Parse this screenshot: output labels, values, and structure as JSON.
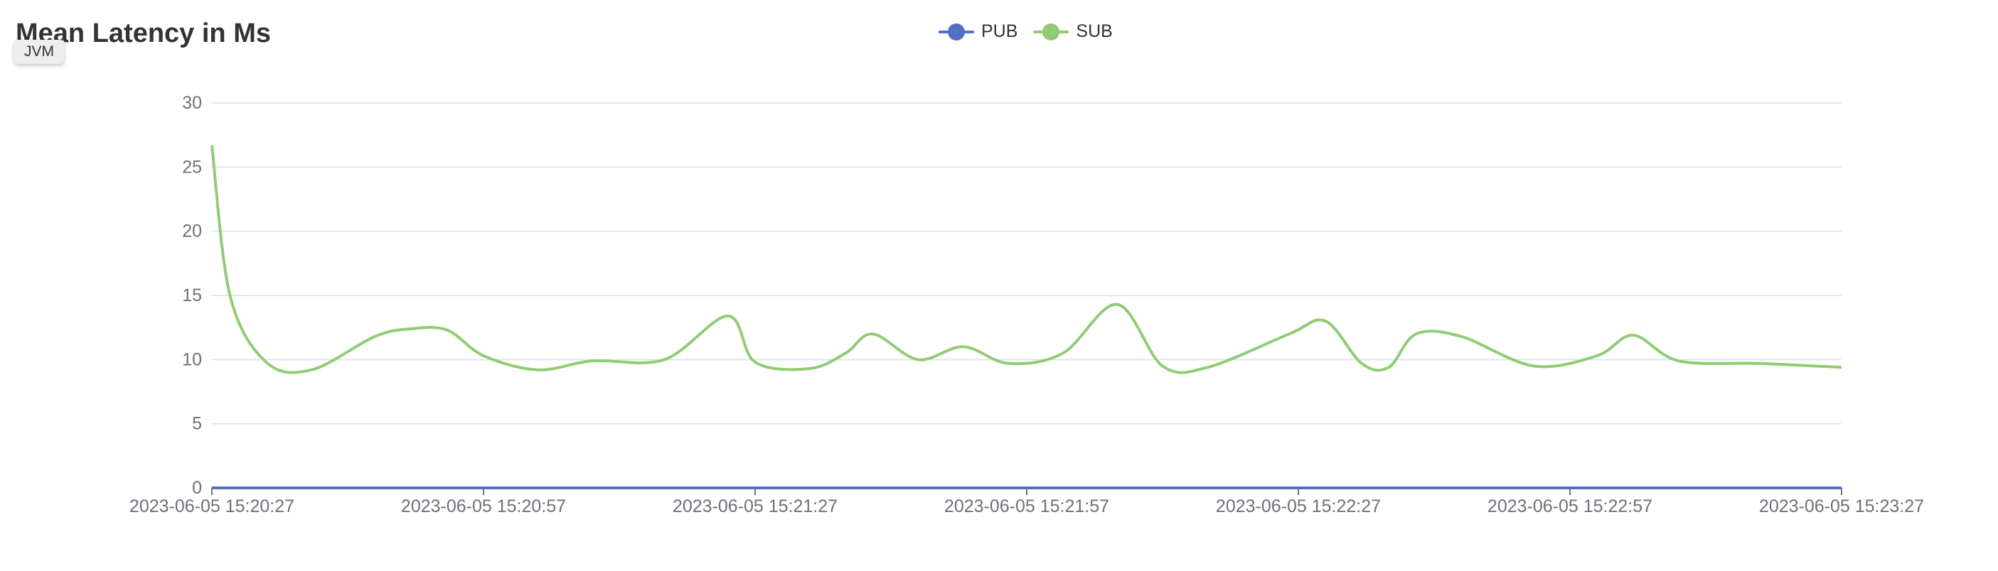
{
  "title": "Mean Latency in Ms",
  "tag_button": "JVM",
  "legend": [
    {
      "name": "PUB",
      "color": "#5470c6",
      "icon": "circle-line"
    },
    {
      "name": "SUB",
      "color": "#91cc75",
      "icon": "circle-line"
    }
  ],
  "chart_data": {
    "type": "line",
    "title": "Mean Latency in Ms",
    "xlabel": "",
    "ylabel": "",
    "x_ticks": [
      "2023-06-05 15:20:27",
      "2023-06-05 15:20:57",
      "2023-06-05 15:21:27",
      "2023-06-05 15:21:57",
      "2023-06-05 15:22:27",
      "2023-06-05 15:22:57",
      "2023-06-05 15:23:27"
    ],
    "xlim": [
      "2023-06-05 15:20:27",
      "2023-06-05 15:23:27"
    ],
    "y_ticks": [
      0,
      5,
      10,
      15,
      20,
      25,
      30
    ],
    "ylim": [
      0,
      30
    ],
    "grid": "horizontal",
    "legend_position": "top-center",
    "smooth": true,
    "series": [
      {
        "name": "PUB",
        "color": "#5470c6",
        "x": [
          "2023-06-05 15:20:27",
          "2023-06-05 15:23:27"
        ],
        "y": [
          0,
          0
        ]
      },
      {
        "name": "SUB",
        "color": "#91cc75",
        "x": [
          "2023-06-05 15:20:27",
          "2023-06-05 15:20:29",
          "2023-06-05 15:20:33",
          "2023-06-05 15:20:38",
          "2023-06-05 15:20:45",
          "2023-06-05 15:20:49",
          "2023-06-05 15:20:53",
          "2023-06-05 15:20:57",
          "2023-06-05 15:21:03",
          "2023-06-05 15:21:09",
          "2023-06-05 15:21:17",
          "2023-06-05 15:21:24",
          "2023-06-05 15:21:27",
          "2023-06-05 15:21:33",
          "2023-06-05 15:21:37",
          "2023-06-05 15:21:40",
          "2023-06-05 15:21:45",
          "2023-06-05 15:21:50",
          "2023-06-05 15:21:55",
          "2023-06-05 15:22:01",
          "2023-06-05 15:22:07",
          "2023-06-05 15:22:12",
          "2023-06-05 15:22:17",
          "2023-06-05 15:22:26",
          "2023-06-05 15:22:30",
          "2023-06-05 15:22:34",
          "2023-06-05 15:22:37",
          "2023-06-05 15:22:40",
          "2023-06-05 15:22:45",
          "2023-06-05 15:22:53",
          "2023-06-05 15:23:00",
          "2023-06-05 15:23:04",
          "2023-06-05 15:23:09",
          "2023-06-05 15:23:18",
          "2023-06-05 15:23:27"
        ],
        "y": [
          26.7,
          15,
          9.8,
          9.2,
          11.8,
          12.4,
          12.3,
          10.3,
          9.2,
          9.9,
          10.0,
          13.4,
          9.8,
          9.3,
          10.5,
          12.0,
          10.0,
          11.0,
          9.7,
          10.5,
          14.3,
          9.5,
          9.4,
          12.0,
          13.0,
          9.7,
          9.4,
          12.0,
          11.8,
          9.5,
          10.3,
          11.9,
          9.9,
          9.7,
          9.4
        ]
      }
    ]
  }
}
